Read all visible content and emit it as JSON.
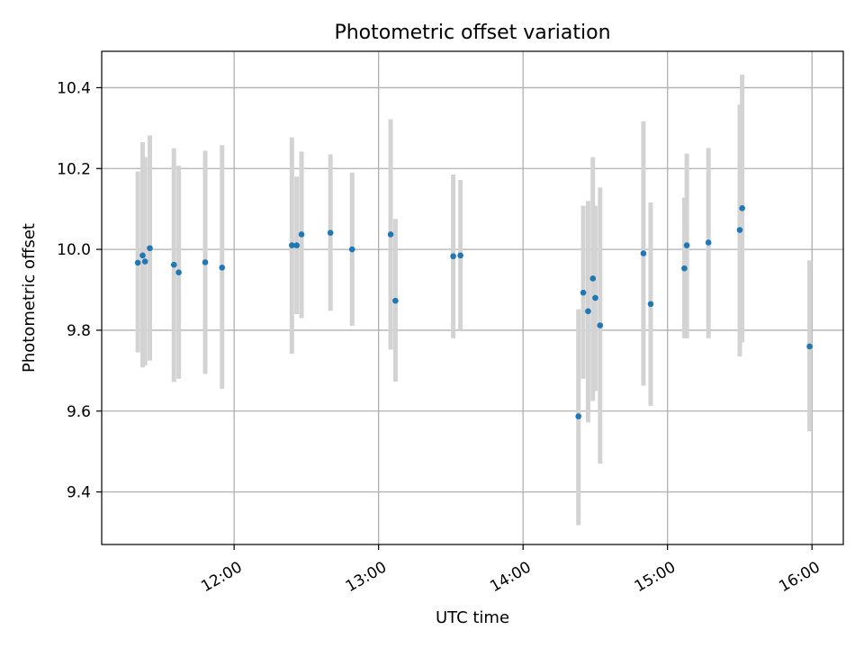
{
  "chart_data": {
    "type": "scatter",
    "title": "Photometric offset variation",
    "xlabel": "UTC time",
    "ylabel": "Photometric offset",
    "x_axis_type": "time",
    "xlim": [
      "11:05",
      "16:13"
    ],
    "ylim": [
      9.27,
      10.49
    ],
    "xticks": [
      "12:00",
      "13:00",
      "14:00",
      "15:00",
      "16:00"
    ],
    "yticks": [
      9.4,
      9.6,
      9.8,
      10.0,
      10.2,
      10.4
    ],
    "grid": true,
    "marker_color": "#1f77b4",
    "errorbar_color": "#d3d3d3",
    "series": [
      {
        "points": [
          {
            "x": "11:20",
            "y": 9.967,
            "ylo": 9.745,
            "yhi": 10.193
          },
          {
            "x": "11:22",
            "y": 9.985,
            "ylo": 9.708,
            "yhi": 10.265
          },
          {
            "x": "11:23",
            "y": 9.97,
            "ylo": 9.713,
            "yhi": 10.228
          },
          {
            "x": "11:25",
            "y": 10.003,
            "ylo": 9.725,
            "yhi": 10.282
          },
          {
            "x": "11:35",
            "y": 9.962,
            "ylo": 9.672,
            "yhi": 10.25
          },
          {
            "x": "11:37",
            "y": 9.943,
            "ylo": 9.68,
            "yhi": 10.207
          },
          {
            "x": "11:48",
            "y": 9.968,
            "ylo": 9.692,
            "yhi": 10.244
          },
          {
            "x": "11:55",
            "y": 9.955,
            "ylo": 9.655,
            "yhi": 10.258
          },
          {
            "x": "12:24",
            "y": 10.01,
            "ylo": 9.742,
            "yhi": 10.277
          },
          {
            "x": "12:26",
            "y": 10.01,
            "ylo": 9.84,
            "yhi": 10.18
          },
          {
            "x": "12:28",
            "y": 10.037,
            "ylo": 9.83,
            "yhi": 10.242
          },
          {
            "x": "12:40",
            "y": 10.041,
            "ylo": 9.848,
            "yhi": 10.235
          },
          {
            "x": "12:49",
            "y": 10.0,
            "ylo": 9.811,
            "yhi": 10.19
          },
          {
            "x": "13:05",
            "y": 10.037,
            "ylo": 9.752,
            "yhi": 10.322
          },
          {
            "x": "13:07",
            "y": 9.873,
            "ylo": 9.673,
            "yhi": 10.075
          },
          {
            "x": "13:31",
            "y": 9.983,
            "ylo": 9.78,
            "yhi": 10.185
          },
          {
            "x": "13:34",
            "y": 9.985,
            "ylo": 9.8,
            "yhi": 10.172
          },
          {
            "x": "14:23",
            "y": 9.587,
            "ylo": 9.318,
            "yhi": 9.852
          },
          {
            "x": "14:25",
            "y": 9.893,
            "ylo": 9.68,
            "yhi": 10.108
          },
          {
            "x": "14:27",
            "y": 9.847,
            "ylo": 9.572,
            "yhi": 10.12
          },
          {
            "x": "14:29",
            "y": 9.928,
            "ylo": 9.625,
            "yhi": 10.228
          },
          {
            "x": "14:30",
            "y": 9.88,
            "ylo": 9.65,
            "yhi": 10.108
          },
          {
            "x": "14:32",
            "y": 9.812,
            "ylo": 9.47,
            "yhi": 10.153
          },
          {
            "x": "14:50",
            "y": 9.99,
            "ylo": 9.663,
            "yhi": 10.317
          },
          {
            "x": "14:53",
            "y": 9.865,
            "ylo": 9.613,
            "yhi": 10.116
          },
          {
            "x": "15:07",
            "y": 9.953,
            "ylo": 9.78,
            "yhi": 10.128
          },
          {
            "x": "15:08",
            "y": 10.01,
            "ylo": 9.78,
            "yhi": 10.237
          },
          {
            "x": "15:17",
            "y": 10.017,
            "ylo": 9.78,
            "yhi": 10.251
          },
          {
            "x": "15:30",
            "y": 10.048,
            "ylo": 9.735,
            "yhi": 10.358
          },
          {
            "x": "15:31",
            "y": 10.102,
            "ylo": 9.77,
            "yhi": 10.432
          },
          {
            "x": "15:59",
            "y": 9.76,
            "ylo": 9.55,
            "yhi": 9.973
          }
        ]
      }
    ]
  }
}
